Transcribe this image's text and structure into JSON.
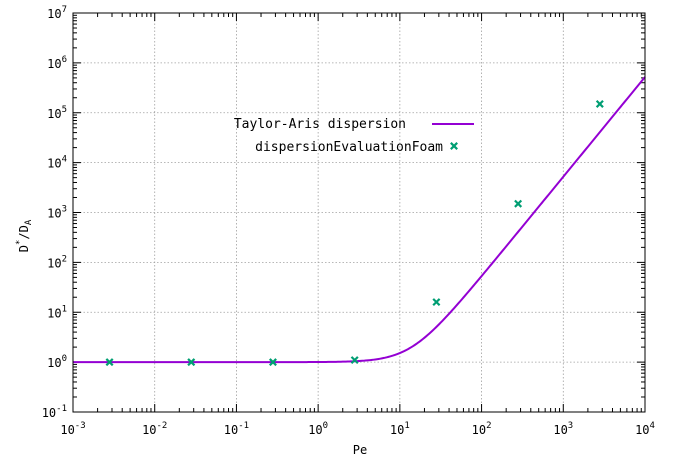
{
  "chart_data": {
    "type": "line",
    "title": "",
    "xlabel": "Pe",
    "ylabel": {
      "base": "D",
      "sup": "*",
      "mid": "/D",
      "sub": "A"
    },
    "x_scale": "log",
    "y_scale": "log",
    "xlim": [
      0.001,
      10000
    ],
    "ylim": [
      0.1,
      10000000
    ],
    "grid": true,
    "legend_position": "top-center",
    "x_ticks": [
      {
        "base": "10",
        "exp": "-3",
        "value": 0.001
      },
      {
        "base": "10",
        "exp": "-2",
        "value": 0.01
      },
      {
        "base": "10",
        "exp": "-1",
        "value": 0.1
      },
      {
        "base": "10",
        "exp": "0",
        "value": 1
      },
      {
        "base": "10",
        "exp": "1",
        "value": 10
      },
      {
        "base": "10",
        "exp": "2",
        "value": 100
      },
      {
        "base": "10",
        "exp": "3",
        "value": 1000
      },
      {
        "base": "10",
        "exp": "4",
        "value": 10000
      }
    ],
    "y_ticks": [
      {
        "base": "10",
        "exp": "-1",
        "value": 0.1
      },
      {
        "base": "10",
        "exp": "0",
        "value": 1
      },
      {
        "base": "10",
        "exp": "1",
        "value": 10
      },
      {
        "base": "10",
        "exp": "2",
        "value": 100
      },
      {
        "base": "10",
        "exp": "3",
        "value": 1000
      },
      {
        "base": "10",
        "exp": "4",
        "value": 10000
      },
      {
        "base": "10",
        "exp": "5",
        "value": 100000
      },
      {
        "base": "10",
        "exp": "6",
        "value": 1000000
      },
      {
        "base": "10",
        "exp": "7",
        "value": 10000000
      }
    ],
    "series": [
      {
        "name": "Taylor-Aris dispersion",
        "kind": "line",
        "color": "#9400d3",
        "formula": "1 + Pe^2/192"
      },
      {
        "name": "dispersionEvaluationFoam",
        "kind": "points",
        "color": "#009e73",
        "x": [
          0.0028,
          0.028,
          0.28,
          2.8,
          28,
          280,
          2800
        ],
        "y": [
          1.0,
          1.0,
          1.0,
          1.1,
          16,
          1500,
          150000
        ]
      }
    ]
  }
}
